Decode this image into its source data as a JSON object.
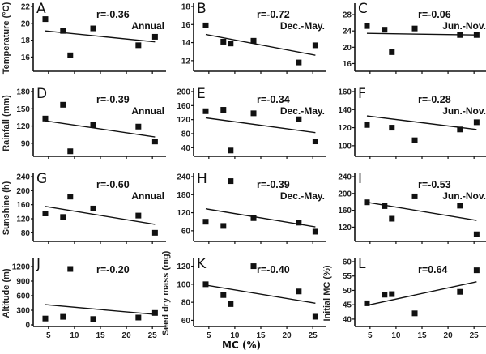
{
  "chart_data": {
    "type": "scatter",
    "xlabel": "MC (%)",
    "x_ticks": [
      5,
      10,
      15,
      20,
      25
    ],
    "x_range": [
      3,
      27
    ],
    "x": [
      4.4,
      7.8,
      9.2,
      13.6,
      22.3,
      25.5
    ],
    "panels": [
      {
        "letter": "A",
        "ylabel": "Temperature (°C)",
        "r": "r=-0.36",
        "season": "Annual",
        "ylim": [
          14.5,
          22
        ],
        "yticks": [
          16,
          18,
          20,
          22
        ],
        "y": [
          20.5,
          19.1,
          16.2,
          19.4,
          17.4,
          18.4
        ],
        "fit": [
          19.1,
          17.8
        ],
        "x_points": [
          4.4,
          7.8,
          9.2,
          13.6,
          22.3,
          25.5
        ]
      },
      {
        "letter": "B",
        "ylabel": "",
        "r": "r=-0.72",
        "season": "Dec.-May.",
        "ylim": [
          11,
          18
        ],
        "yticks": [
          12,
          14,
          16,
          18
        ],
        "y": [
          15.9,
          14.1,
          13.9,
          14.2,
          11.8,
          13.7
        ],
        "fit": [
          14.9,
          12.6
        ],
        "x_points": [
          4.4,
          7.8,
          9.2,
          13.6,
          22.3,
          25.5
        ]
      },
      {
        "letter": "C",
        "ylabel": "",
        "r": "r=-0.06",
        "season": "Jun.-Nov.",
        "ylim": [
          14.5,
          30
        ],
        "yticks": [
          16,
          20,
          24,
          28
        ],
        "y": [
          25.2,
          24.3,
          18.8,
          24.6,
          23.0,
          23.0
        ],
        "fit": [
          23.4,
          23.0
        ],
        "x_points": [
          4.4,
          7.8,
          9.2,
          13.6,
          22.3,
          25.5
        ]
      },
      {
        "letter": "D",
        "ylabel": "Rainfall (mm)",
        "r": "r=-0.39",
        "season": "Annual",
        "ylim": [
          70,
          180
        ],
        "yticks": [
          90,
          120,
          150,
          180
        ],
        "y": [
          133,
          157,
          76,
          122,
          119,
          93
        ],
        "fit": [
          129,
          101
        ],
        "x_points": [
          4.4,
          7.8,
          9.2,
          13.6,
          22.3,
          25.5
        ]
      },
      {
        "letter": "E",
        "ylabel": "",
        "r": "r=-0.34",
        "season": "Dec.-May.",
        "ylim": [
          20,
          200
        ],
        "yticks": [
          40,
          80,
          120,
          160,
          200
        ],
        "y": [
          144,
          148,
          32,
          138,
          121,
          58
        ],
        "fit": [
          125,
          83
        ],
        "x_points": [
          4.4,
          7.8,
          9.2,
          13.6,
          22.3,
          25.5
        ]
      },
      {
        "letter": "F",
        "ylabel": "",
        "r": "r=-0.28",
        "season": "Jun.-Nov.",
        "ylim": [
          90,
          160
        ],
        "yticks": [
          100,
          120,
          140,
          160
        ],
        "y": [
          123,
          120,
          106,
          118,
          126
        ],
        "fit": [
          133,
          118
        ],
        "x_points": [
          4.4,
          9.2,
          13.6,
          22.3,
          25.5
        ]
      },
      {
        "letter": "G",
        "ylabel": "Sunshine (h)",
        "r": "r=-0.60",
        "season": "Annual",
        "ylim": [
          60,
          240
        ],
        "yticks": [
          80,
          120,
          160,
          200,
          240
        ],
        "y": [
          135,
          125,
          183,
          149,
          129,
          80
        ],
        "fit": [
          155,
          104
        ],
        "x_points": [
          4.4,
          7.8,
          9.2,
          13.6,
          22.3,
          25.5
        ]
      },
      {
        "letter": "H",
        "ylabel": "",
        "r": "r=-0.39",
        "season": "Dec.-May.",
        "ylim": [
          30,
          240
        ],
        "yticks": [
          60,
          120,
          180,
          240
        ],
        "y": [
          90,
          76,
          225,
          102,
          87,
          57
        ],
        "fit": [
          133,
          73
        ],
        "x_points": [
          4.4,
          7.8,
          9.2,
          13.6,
          22.3,
          25.5
        ]
      },
      {
        "letter": "I",
        "ylabel": "",
        "r": "r=-0.53",
        "season": "Jun.-Nov.",
        "ylim": [
          90,
          240
        ],
        "yticks": [
          120,
          160,
          200,
          240
        ],
        "y": [
          179,
          170,
          140,
          193,
          171,
          103
        ],
        "fit": [
          179,
          136
        ],
        "x_points": [
          4.4,
          7.8,
          9.2,
          13.6,
          22.3,
          25.5
        ]
      },
      {
        "letter": "J",
        "ylabel": "Altitude (m)",
        "r": "r=-0.20",
        "season": "",
        "ylim": [
          0,
          1300
        ],
        "yticks": [
          0,
          300,
          600,
          900,
          1200
        ],
        "y": [
          130,
          165,
          1150,
          120,
          150,
          245
        ],
        "fit": [
          415,
          215
        ],
        "x_points": [
          4.4,
          7.8,
          9.2,
          13.6,
          22.3,
          25.5
        ]
      },
      {
        "letter": "K",
        "ylabel": "Seed dry mass (mg)",
        "r": "r=-0.40",
        "season": "",
        "ylim": [
          55,
          125
        ],
        "yticks": [
          60,
          80,
          100,
          120
        ],
        "y": [
          100,
          88,
          78,
          120,
          92,
          64
        ],
        "fit": [
          99,
          79
        ],
        "x_points": [
          4.4,
          7.8,
          9.2,
          13.6,
          22.3,
          25.5
        ]
      },
      {
        "letter": "L",
        "ylabel": "Initial MC (%)",
        "r": "r=0.64",
        "season": "",
        "ylim": [
          38,
          60
        ],
        "yticks": [
          40,
          45,
          50,
          55,
          60
        ],
        "y": [
          45.5,
          48.5,
          48.7,
          42,
          49.5,
          57
        ],
        "fit": [
          44.8,
          53.0
        ],
        "x_points": [
          4.4,
          7.8,
          9.2,
          13.6,
          22.3,
          25.5
        ]
      }
    ]
  }
}
